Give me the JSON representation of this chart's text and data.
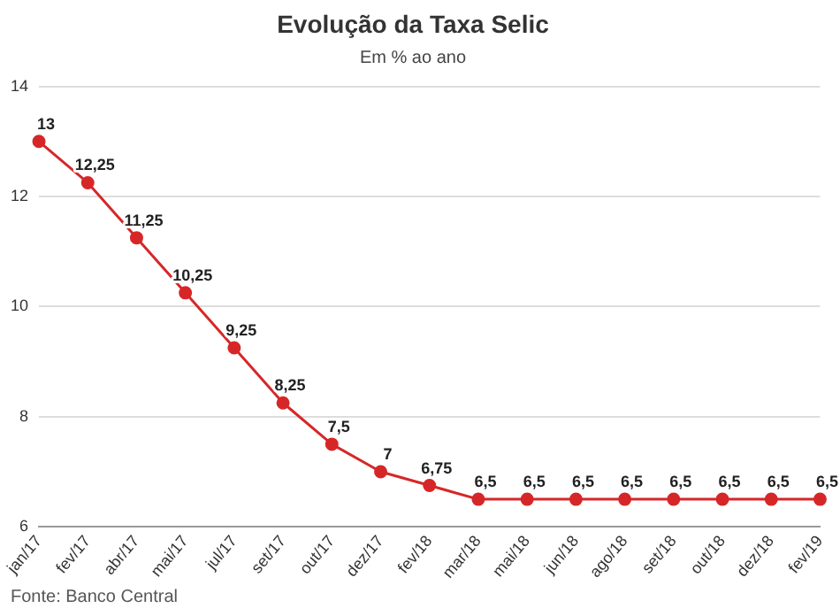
{
  "chart_data": {
    "type": "line",
    "title": "Evolução da Taxa Selic",
    "subtitle": "Em % ao ano",
    "categories": [
      "jan/17",
      "fev/17",
      "abr/17",
      "mai/17",
      "jul/17",
      "set/17",
      "out/17",
      "dez/17",
      "fev/18",
      "mar/18",
      "mai/18",
      "jun/18",
      "ago/18",
      "set/18",
      "out/18",
      "dez/18",
      "fev/19"
    ],
    "series": [
      {
        "color": "#d62728",
        "values": [
          13,
          12.25,
          11.25,
          10.25,
          9.25,
          8.25,
          7.5,
          7,
          6.75,
          6.5,
          6.5,
          6.5,
          6.5,
          6.5,
          6.5,
          6.5,
          6.5
        ],
        "value_labels": [
          "13",
          "12,25",
          "11,25",
          "10,25",
          "9,25",
          "8,25",
          "7,5",
          "7",
          "6,75",
          "6,5",
          "6,5",
          "6,5",
          "6,5",
          "6,5",
          "6,5",
          "6,5",
          "6,5"
        ]
      }
    ],
    "ylim": [
      6,
      14
    ],
    "yticks": [
      6,
      8,
      10,
      12,
      14
    ],
    "grid": "y",
    "legend": false,
    "marker": "circle",
    "line_style": "solid",
    "annotations": [
      "Fonte: Banco Central"
    ]
  }
}
